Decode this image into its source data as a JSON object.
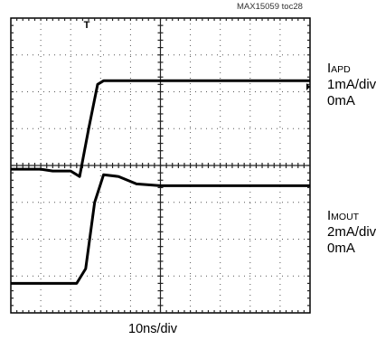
{
  "figure_id": "MAX15059 toc28",
  "x_scale": "10ns/div",
  "trigger_marker": "T",
  "channels": [
    {
      "symbol": "I",
      "subscript": "APD",
      "scale": "1mA/div",
      "zero": "0mA"
    },
    {
      "symbol": "I",
      "subscript": "MOUT",
      "scale": "2mA/div",
      "zero": "0mA"
    }
  ],
  "chart_data": {
    "type": "line",
    "title": "",
    "grid": true,
    "x_divisions": 10,
    "y_divisions": 8,
    "xlabel": "10ns/div",
    "series": [
      {
        "name": "IAPD",
        "unit": "mA",
        "scale_per_div": 1,
        "x_div": [
          0,
          1,
          1.4,
          2.0,
          2.3,
          2.6,
          2.9,
          3.1,
          3.5,
          10
        ],
        "y_div": [
          -0.1,
          -0.1,
          -0.15,
          -0.15,
          -0.3,
          1.0,
          2.2,
          2.3,
          2.3,
          2.3
        ]
      },
      {
        "name": "IMOUT",
        "unit": "mA",
        "scale_per_div": 2,
        "x_div": [
          0,
          2.0,
          2.2,
          2.5,
          2.8,
          3.1,
          3.6,
          4.2,
          5,
          10
        ],
        "y_div": [
          -3.2,
          -3.2,
          -3.2,
          -2.8,
          -1.0,
          -0.25,
          -0.3,
          -0.5,
          -0.55,
          -0.55
        ]
      }
    ]
  }
}
